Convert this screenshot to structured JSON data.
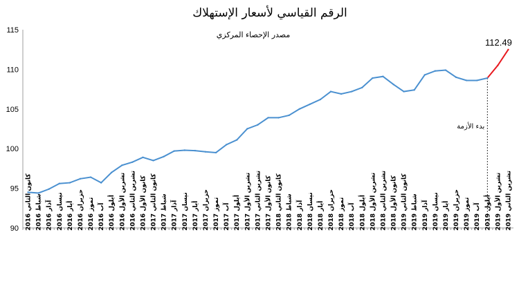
{
  "chart_data": {
    "type": "line",
    "title": "الرقم القياسي لأسعار الإستهلاك",
    "subtitle": "مصدر الإحصاء المركزي",
    "ylim": [
      90,
      115
    ],
    "yticks": [
      90,
      95,
      100,
      105,
      110,
      115
    ],
    "grid": false,
    "categories": [
      "كانون الثاني 2016",
      "شباط 2016",
      "آذار 2016",
      "نيسان 2016",
      "أيار 2016",
      "حزيران 2016",
      "تموز 2016",
      "آب 2016",
      "أيلول 2016",
      "تشرين الأول 2016",
      "تشرين الثاني 2016",
      "كانون الأول 2016",
      "كانون الثاني 2017",
      "شباط 2017",
      "آذار 2017",
      "نيسان 2017",
      "أيار 2017",
      "حزيران 2017",
      "تموز 2017",
      "آب 2017",
      "أيلول 2017",
      "تشرين الأول 2017",
      "تشرين الثاني 2017",
      "كانون الأول 2017",
      "كانون الثاني 2018",
      "شباط 2018",
      "آذار 2018",
      "نيسان 2018",
      "أيار 2018",
      "حزيران 2018",
      "تموز 2018",
      "آب 2018",
      "أيلول 2018",
      "تشرين الأول 2018",
      "تشرين الثاني 2018",
      "كانون الأول 2018",
      "كانون الثاني 2019",
      "شباط 2019",
      "آذار 2019",
      "نيسان 2019",
      "أيار 2019",
      "حزيران 2019",
      "تموز 2019",
      "آب 2019",
      "أيلول 2019",
      "تشرين الأول 2019",
      "تشرين الثاني 2019"
    ],
    "values": [
      94.5,
      94.4,
      94.9,
      95.6,
      95.7,
      96.2,
      96.4,
      95.7,
      97.0,
      97.9,
      98.3,
      98.9,
      98.5,
      99.0,
      99.7,
      99.8,
      99.75,
      99.6,
      99.5,
      100.5,
      101.1,
      102.5,
      103.0,
      103.9,
      103.9,
      104.2,
      105.0,
      105.6,
      106.2,
      107.2,
      106.9,
      107.2,
      107.7,
      108.9,
      109.1,
      108.1,
      107.2,
      107.4,
      109.3,
      109.8,
      109.9,
      109.0,
      108.6,
      108.6,
      108.9,
      110.5,
      112.49
    ],
    "highlight_start_index": 44,
    "series_color": "#4a90d0",
    "highlight_color": "#e8191f",
    "last_value_label": "112.49",
    "annotation": "بدء الأزمة"
  }
}
